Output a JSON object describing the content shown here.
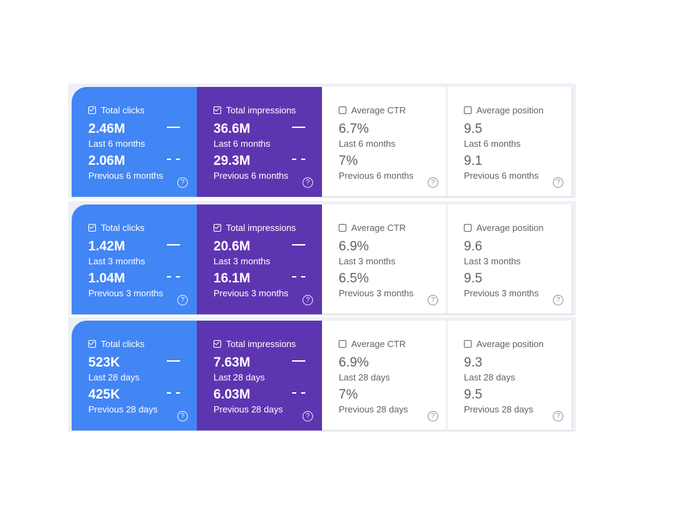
{
  "colors": {
    "clicks_bg": "#4285f4",
    "impressions_bg": "#5e35b1",
    "inactive_bg": "#ffffff",
    "inactive_text": "#5f6368",
    "panel_bg": "#eef0f6"
  },
  "icons": {
    "checkbox_checked": "checkbox-checked-icon",
    "checkbox_empty": "checkbox-empty-icon",
    "help": "help-icon",
    "help_glyph": "?"
  },
  "panels": [
    {
      "cards": [
        {
          "title": "Total clicks",
          "checked": true,
          "current": "2.46M",
          "current_label": "Last 6 months",
          "previous": "2.06M",
          "previous_label": "Previous 6 months"
        },
        {
          "title": "Total impressions",
          "checked": true,
          "current": "36.6M",
          "current_label": "Last 6 months",
          "previous": "29.3M",
          "previous_label": "Previous 6 months"
        },
        {
          "title": "Average CTR",
          "checked": false,
          "current": "6.7%",
          "current_label": "Last 6 months",
          "previous": "7%",
          "previous_label": "Previous 6 months"
        },
        {
          "title": "Average position",
          "checked": false,
          "current": "9.5",
          "current_label": "Last 6 months",
          "previous": "9.1",
          "previous_label": "Previous 6 months"
        }
      ]
    },
    {
      "cards": [
        {
          "title": "Total clicks",
          "checked": true,
          "current": "1.42M",
          "current_label": "Last 3 months",
          "previous": "1.04M",
          "previous_label": "Previous 3 months"
        },
        {
          "title": "Total impressions",
          "checked": true,
          "current": "20.6M",
          "current_label": "Last 3 months",
          "previous": "16.1M",
          "previous_label": "Previous 3 months"
        },
        {
          "title": "Average CTR",
          "checked": false,
          "current": "6.9%",
          "current_label": "Last 3 months",
          "previous": "6.5%",
          "previous_label": "Previous 3 months"
        },
        {
          "title": "Average position",
          "checked": false,
          "current": "9.6",
          "current_label": "Last 3 months",
          "previous": "9.5",
          "previous_label": "Previous 3 months"
        }
      ]
    },
    {
      "cards": [
        {
          "title": "Total clicks",
          "checked": true,
          "current": "523K",
          "current_label": "Last 28 days",
          "previous": "425K",
          "previous_label": "Previous 28 days"
        },
        {
          "title": "Total impressions",
          "checked": true,
          "current": "7.63M",
          "current_label": "Last 28 days",
          "previous": "6.03M",
          "previous_label": "Previous 28 days"
        },
        {
          "title": "Average CTR",
          "checked": false,
          "current": "6.9%",
          "current_label": "Last 28 days",
          "previous": "7%",
          "previous_label": "Previous 28 days"
        },
        {
          "title": "Average position",
          "checked": false,
          "current": "9.3",
          "current_label": "Last 28 days",
          "previous": "9.5",
          "previous_label": "Previous 28 days"
        }
      ]
    }
  ]
}
